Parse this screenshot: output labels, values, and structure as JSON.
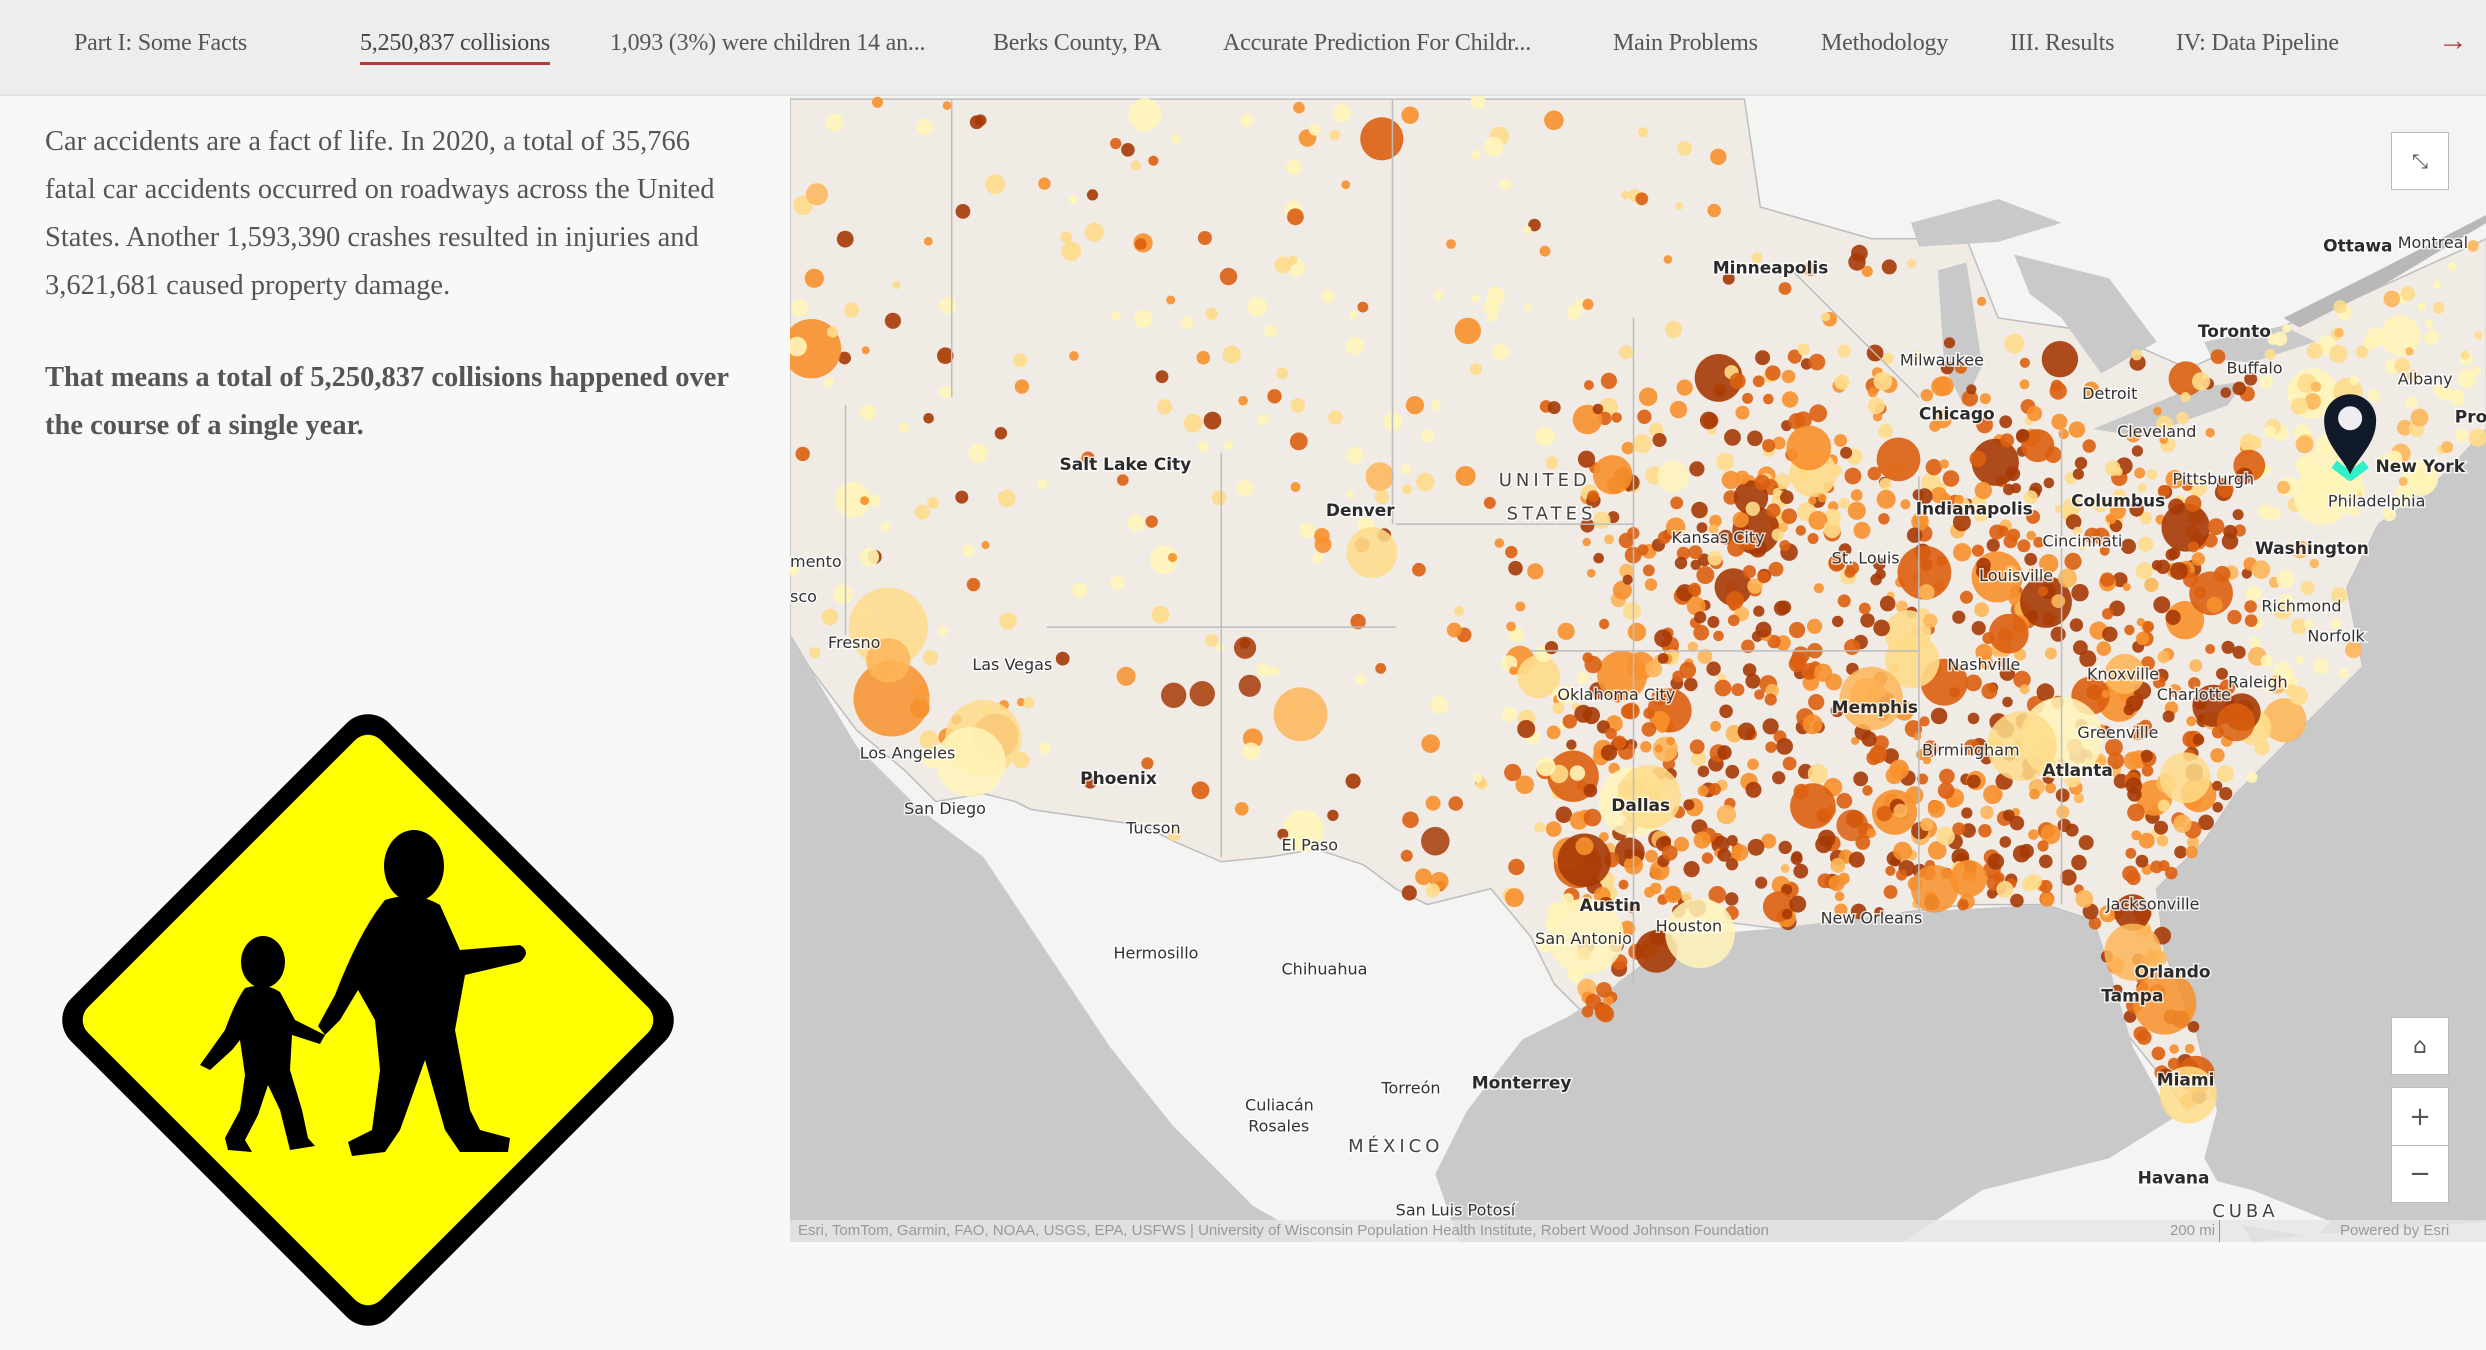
{
  "nav": {
    "items": [
      {
        "label": "Part I: Some Facts",
        "active": false
      },
      {
        "label": "5,250,837 collisions",
        "active": true
      },
      {
        "label": "1,093 (3%) were children 14 an...",
        "active": false
      },
      {
        "label": "Berks County, PA",
        "active": false
      },
      {
        "label": "Accurate Prediction For Childr...",
        "active": false
      },
      {
        "label": "Main Problems",
        "active": false
      },
      {
        "label": "Methodology",
        "active": false
      },
      {
        "label": "III. Results",
        "active": false
      },
      {
        "label": "IV: Data Pipeline",
        "active": false
      }
    ],
    "next_icon": "arrow-right-icon",
    "next_label": "→",
    "accent": "#b03a3a"
  },
  "content": {
    "paragraph1": "Car accidents are a fact of life. In 2020, a total of 35,766 fatal car accidents occurred on roadways across the United States. Another 1,593,390 crashes resulted in injuries and 3,621,681 caused property damage.",
    "paragraph2": "That means a total of 5,250,837 collisions happened over the course of a single year.",
    "image": "children-crossing-sign"
  },
  "map": {
    "cities": [
      "Ottawa",
      "Montreal",
      "Minneapolis",
      "Toronto",
      "Milwaukee",
      "Buffalo",
      "Albany",
      "Detroit",
      "Chicago",
      "Cleveland",
      "Pro",
      "Salt Lake City",
      "UNITED",
      "STATES",
      "Pittsburgh",
      "New York",
      "Indianapolis",
      "Columbus",
      "Philadelphia",
      "Denver",
      "Kansas City",
      "Cincinnati",
      "Washington",
      "mento",
      "St. Louis",
      "Louisville",
      "Richmond",
      "Fresno",
      "Norfolk",
      "sco",
      "Las Vegas",
      "Nashville",
      "Knoxville",
      "Raleigh",
      "Oklahoma City",
      "Memphis",
      "Charlotte",
      "Greenville",
      "Los Angeles",
      "Atlanta",
      "Birmingham",
      "Phoenix",
      "Dallas",
      "San Diego",
      "Tucson",
      "El Paso",
      "Austin",
      "Jacksonville",
      "New Orleans",
      "Houston",
      "San Antonio",
      "Hermosillo",
      "Chihuahua",
      "Orlando",
      "Tampa",
      "Miami",
      "Torreón",
      "Monterrey",
      "Culiacán",
      "Rosales",
      "MÉXICO",
      "Havana",
      "San Luis Potosí",
      "CUBA"
    ],
    "dot_colors": [
      "#fff5b8",
      "#fedc8a",
      "#fdb659",
      "#f7902c",
      "#db5f0f",
      "#a63a06"
    ],
    "land_color": "#f4f4f3",
    "water_color": "#c9c9c9",
    "marker": {
      "label": "Philadelphia",
      "icon": "map-pin-icon",
      "color": "#111a28",
      "accent": "#2ff0c8"
    },
    "controls": {
      "expand_icon": "expand-icon",
      "home_icon": "home-icon",
      "zoom_in": "+",
      "zoom_out": "−"
    },
    "attribution": "Esri, TomTom, Garmin, FAO, NOAA, USGS, EPA, USFWS | University of Wisconsin Population Health Institute, Robert Wood Johnson Foundation",
    "scale": "200 mi",
    "powered_by": "Powered by Esri"
  }
}
